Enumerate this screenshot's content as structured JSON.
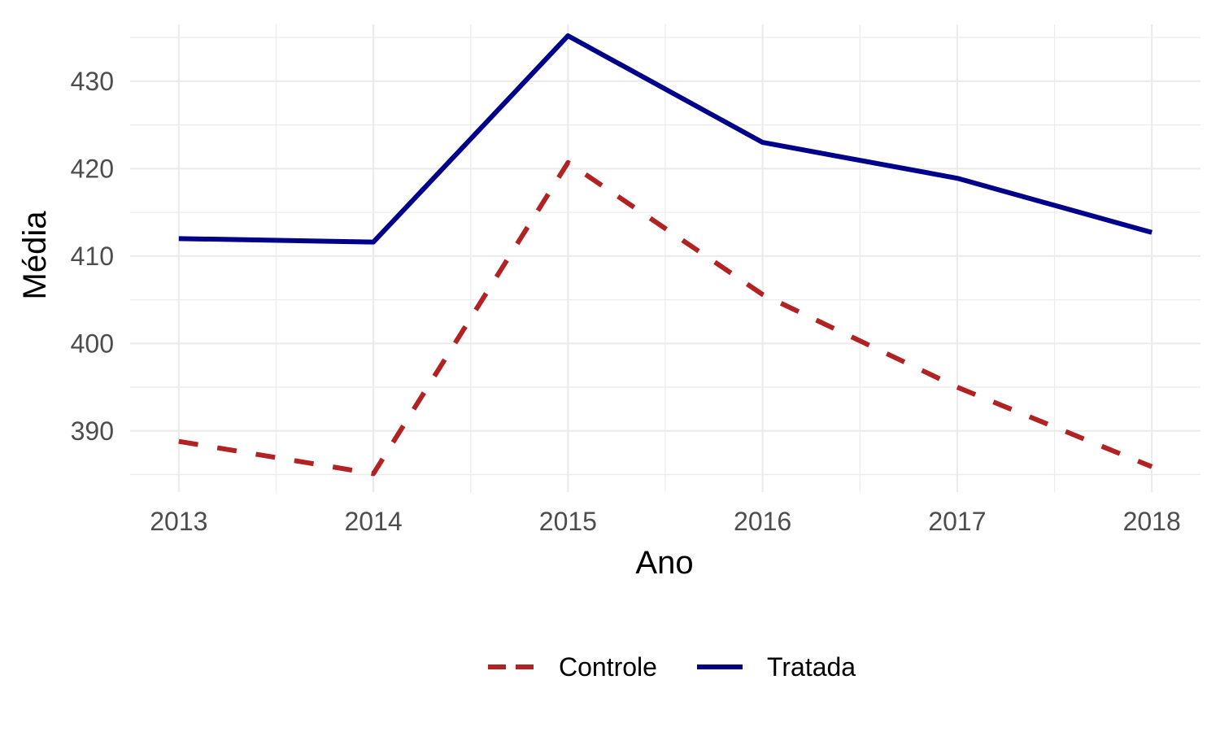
{
  "chart_data": {
    "type": "line",
    "title": "",
    "xlabel": "Ano",
    "ylabel": "Média",
    "x": [
      2013,
      2014,
      2015,
      2016,
      2017,
      2018
    ],
    "x_tick_labels": [
      "2013",
      "2014",
      "2015",
      "2016",
      "2017",
      "2018"
    ],
    "y_ticks": [
      390,
      400,
      410,
      420,
      430
    ],
    "y_tick_labels": [
      "390",
      "400",
      "410",
      "420",
      "430"
    ],
    "xlim": [
      2012.75,
      2018.25
    ],
    "ylim": [
      383.0,
      436.5
    ],
    "grid": true,
    "legend_position": "bottom",
    "series": [
      {
        "name": "Controle",
        "color": "#b22222",
        "line_style": "dashed",
        "values": [
          388.8,
          385.1,
          420.7,
          405.6,
          395.0,
          385.9
        ]
      },
      {
        "name": "Tratada",
        "color": "#00008b",
        "line_style": "solid",
        "values": [
          412.0,
          411.6,
          435.2,
          423.0,
          418.9,
          412.7
        ]
      }
    ]
  }
}
